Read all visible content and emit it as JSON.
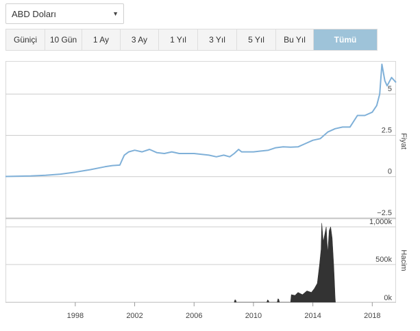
{
  "currency_select": {
    "value": "ABD Doları"
  },
  "range_buttons": [
    {
      "label": "Güniçi",
      "active": false
    },
    {
      "label": "10 Gün",
      "active": false
    },
    {
      "label": "1 Ay",
      "active": false
    },
    {
      "label": "3 Ay",
      "active": false
    },
    {
      "label": "1 Yıl",
      "active": false
    },
    {
      "label": "3 Yıl",
      "active": false
    },
    {
      "label": "5 Yıl",
      "active": false
    },
    {
      "label": "Bu Yıl",
      "active": false
    },
    {
      "label": "Tümü",
      "active": true
    }
  ],
  "colors": {
    "price_line": "#7fb0d8",
    "volume_area": "#333333",
    "grid": "#cccccc",
    "active_button": "#9ec3d9"
  },
  "chart_data": [
    {
      "type": "line",
      "ylabel": "Fiyat",
      "ylim": [
        -2.5,
        7.0
      ],
      "y_ticks": [
        "5",
        "2.5",
        "0",
        "−2.5"
      ],
      "y_tick_values": [
        5,
        2.5,
        0,
        -2.5
      ],
      "xlim": [
        1993.3,
        2019.6
      ],
      "series": [
        {
          "x": [
            1993.3,
            1995,
            1996,
            1997,
            1998,
            1999,
            2000,
            2000.5,
            2001.0,
            2001.15,
            2001.3,
            2001.6,
            2002,
            2002.5,
            2003,
            2003.5,
            2004,
            2004.5,
            2005,
            2006,
            2007,
            2007.5,
            2008,
            2008.4,
            2008.7,
            2009.0,
            2009.2,
            2009.5,
            2010,
            2010.5,
            2011,
            2011.5,
            2012,
            2012.5,
            2013,
            2013.5,
            2014,
            2014.5,
            2015,
            2015.5,
            2016,
            2016.5,
            2017,
            2017.5,
            2018,
            2018.3,
            2018.5,
            2018.65,
            2018.85,
            2019.0,
            2019.3,
            2019.6
          ],
          "y": [
            0.01,
            0.04,
            0.08,
            0.15,
            0.27,
            0.42,
            0.6,
            0.67,
            0.7,
            1.0,
            1.3,
            1.5,
            1.6,
            1.5,
            1.65,
            1.45,
            1.4,
            1.5,
            1.4,
            1.4,
            1.3,
            1.2,
            1.3,
            1.2,
            1.4,
            1.65,
            1.5,
            1.5,
            1.5,
            1.55,
            1.6,
            1.75,
            1.8,
            1.78,
            1.8,
            2.0,
            2.2,
            2.3,
            2.7,
            2.9,
            3.0,
            3.0,
            3.7,
            3.7,
            3.9,
            4.3,
            5.0,
            6.8,
            5.8,
            5.5,
            6.0,
            5.7
          ]
        }
      ]
    },
    {
      "type": "area",
      "ylabel": "Hacim",
      "ylim": [
        0,
        1100
      ],
      "y_ticks": [
        "1,000k",
        "500k",
        "0k"
      ],
      "y_tick_values": [
        1000,
        500,
        0
      ],
      "x_ticks": [
        "1998",
        "2002",
        "2006",
        "2010",
        "2014",
        "2018"
      ],
      "x_tick_values": [
        1998,
        2002,
        2006,
        2010,
        2014,
        2018
      ],
      "series": [
        {
          "x": [
            2008.7,
            2008.75,
            2008.8,
            2008.85,
            2010.9,
            2010.95,
            2011.0,
            2011.05,
            2011.6,
            2011.65,
            2011.7,
            2011.75,
            2012.5,
            2012.55,
            2012.8,
            2013.0,
            2013.3,
            2013.6,
            2013.9,
            2014.1,
            2014.3,
            2014.45,
            2014.55,
            2014.6,
            2014.7,
            2014.8,
            2014.9,
            2015.0,
            2015.1,
            2015.2,
            2015.3,
            2015.4,
            2015.45,
            2015.5,
            2015.52
          ],
          "y": [
            0,
            30,
            30,
            0,
            0,
            30,
            25,
            0,
            0,
            45,
            40,
            0,
            0,
            100,
            90,
            130,
            100,
            150,
            130,
            180,
            250,
            500,
            700,
            1050,
            800,
            900,
            1000,
            650,
            950,
            1000,
            850,
            500,
            280,
            60,
            0
          ]
        }
      ]
    }
  ]
}
